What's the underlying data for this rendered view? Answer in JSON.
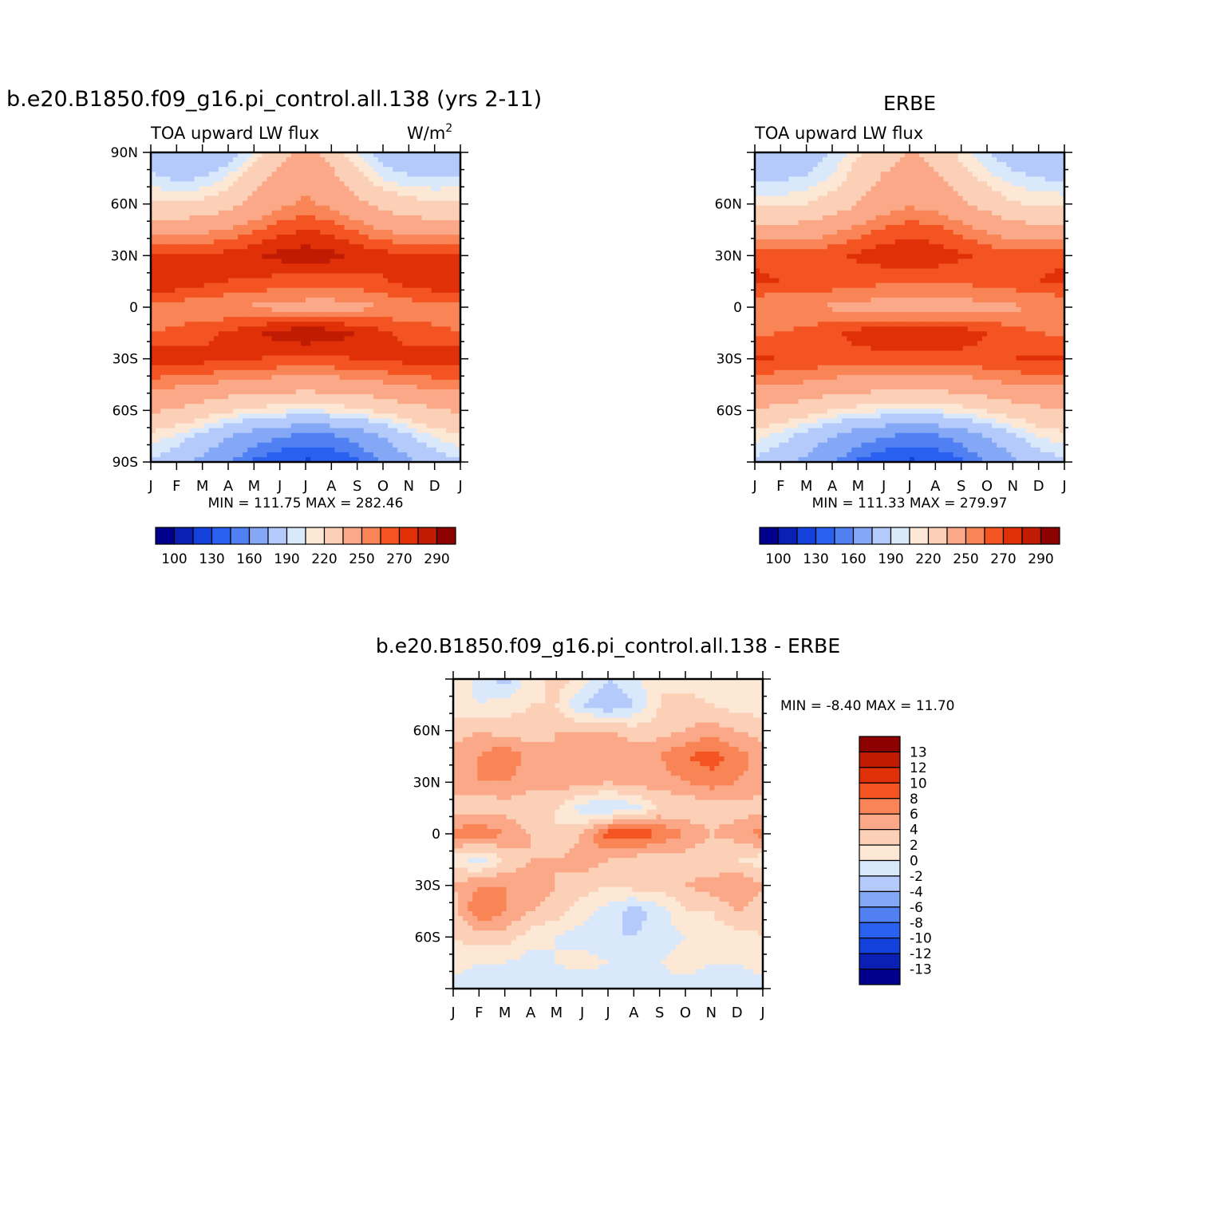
{
  "panels": [
    {
      "title": "b.e20.B1850.f09_g16.pi_control.all.138 (yrs 2-11)",
      "subtitle": "TOA upward LW flux",
      "units": "W/m",
      "units_sup": "2",
      "minmax": "MIN = 111.75 MAX = 282.46"
    },
    {
      "title": "ERBE",
      "subtitle": "TOA upward LW flux",
      "units": "",
      "units_sup": "",
      "minmax": "MIN = 111.33 MAX = 279.97"
    },
    {
      "title": "b.e20.B1850.f09_g16.pi_control.all.138 - ERBE",
      "subtitle": "",
      "units": "",
      "units_sup": "",
      "minmax": "MIN =   -8.40 MAX =   11.70"
    }
  ],
  "colors": {
    "abs": [
      "#00008c",
      "#0a1fb4",
      "#1440dc",
      "#2a60f0",
      "#5080f2",
      "#84a8f6",
      "#b4cafa",
      "#dae8fc",
      "#fde8d6",
      "#fcd0b6",
      "#fba888",
      "#f98556",
      "#f45422",
      "#e03008",
      "#c01c04",
      "#8c0000"
    ],
    "diff": [
      "#00008c",
      "#0a1fb4",
      "#1440dc",
      "#2a60f0",
      "#5080f2",
      "#84a8f6",
      "#b4cafa",
      "#dae8fc",
      "#fde8d6",
      "#fcd0b6",
      "#fba888",
      "#f98556",
      "#f45422",
      "#e03008",
      "#c01c04",
      "#8c0000"
    ]
  },
  "chart_data": [
    {
      "type": "heatmap",
      "title": "b.e20.B1850.f09_g16.pi_control.all.138 (yrs 2-11)",
      "subtitle": "TOA upward LW flux",
      "units": "W/m2",
      "x_labels": [
        "J",
        "F",
        "M",
        "A",
        "M",
        "J",
        "J",
        "A",
        "S",
        "O",
        "N",
        "D",
        "J"
      ],
      "y_labels": [
        "90N",
        "60N",
        "30N",
        "0",
        "30S",
        "60S",
        "90S"
      ],
      "ylim": [
        -90,
        90
      ],
      "levels": [
        100,
        110,
        120,
        130,
        140,
        160,
        180,
        190,
        200,
        220,
        240,
        250,
        260,
        270,
        280,
        290
      ],
      "level_tick_labels": [
        "100",
        "130",
        "160",
        "190",
        "220",
        "250",
        "270",
        "290"
      ],
      "lats": [
        90,
        75,
        60,
        45,
        30,
        15,
        0,
        -15,
        -30,
        -45,
        -60,
        -75,
        -90
      ],
      "values": [
        [
          170,
          162,
          158,
          168,
          190,
          212,
          226,
          212,
          188,
          172,
          162,
          162,
          168
        ],
        [
          183,
          178,
          180,
          192,
          212,
          228,
          236,
          226,
          208,
          190,
          182,
          180,
          182
        ],
        [
          205,
          202,
          205,
          213,
          225,
          236,
          242,
          236,
          226,
          213,
          206,
          204,
          205
        ],
        [
          232,
          232,
          236,
          241,
          248,
          256,
          260,
          257,
          248,
          240,
          234,
          232,
          232
        ],
        [
          262,
          262,
          262,
          264,
          268,
          274,
          276,
          274,
          268,
          264,
          262,
          262,
          262
        ],
        [
          270,
          268,
          264,
          260,
          258,
          256,
          255,
          255,
          256,
          259,
          264,
          268,
          270
        ],
        [
          245,
          244,
          242,
          240,
          238,
          236,
          234,
          234,
          236,
          240,
          244,
          246,
          245
        ],
        [
          250,
          252,
          256,
          262,
          268,
          275,
          278,
          276,
          270,
          262,
          256,
          252,
          250
        ],
        [
          268,
          266,
          264,
          262,
          260,
          259,
          259,
          259,
          260,
          262,
          264,
          266,
          268
        ],
        [
          244,
          242,
          240,
          236,
          234,
          232,
          231,
          232,
          234,
          238,
          242,
          244,
          244
        ],
        [
          222,
          218,
          210,
          202,
          196,
          192,
          190,
          192,
          196,
          204,
          212,
          218,
          222
        ],
        [
          196,
          188,
          176,
          160,
          148,
          140,
          136,
          138,
          146,
          160,
          178,
          192,
          198
        ],
        [
          178,
          168,
          154,
          140,
          128,
          122,
          118,
          120,
          128,
          140,
          156,
          170,
          178
        ]
      ]
    },
    {
      "type": "heatmap",
      "title": "ERBE",
      "subtitle": "TOA upward LW flux",
      "x_labels": [
        "J",
        "F",
        "M",
        "A",
        "M",
        "J",
        "J",
        "A",
        "S",
        "O",
        "N",
        "D",
        "J"
      ],
      "y_labels": [
        "60N",
        "30N",
        "0",
        "30S",
        "60S"
      ],
      "ylim": [
        -90,
        90
      ],
      "levels": [
        100,
        110,
        120,
        130,
        140,
        160,
        180,
        190,
        200,
        220,
        240,
        250,
        260,
        270,
        280,
        290
      ],
      "level_tick_labels": [
        "100",
        "130",
        "160",
        "190",
        "220",
        "250",
        "270",
        "290"
      ],
      "lats": [
        90,
        75,
        60,
        45,
        30,
        15,
        0,
        -15,
        -30,
        -45,
        -60,
        -75,
        -90
      ],
      "values": [
        [
          160,
          165,
          170,
          180,
          198,
          212,
          222,
          212,
          195,
          180,
          170,
          162,
          160
        ],
        [
          178,
          178,
          182,
          192,
          208,
          222,
          230,
          224,
          210,
          195,
          185,
          180,
          178
        ],
        [
          198,
          196,
          200,
          208,
          220,
          232,
          238,
          234,
          224,
          212,
          202,
          198,
          198
        ],
        [
          226,
          226,
          230,
          236,
          244,
          252,
          256,
          254,
          246,
          238,
          230,
          226,
          226
        ],
        [
          258,
          256,
          256,
          258,
          262,
          266,
          268,
          266,
          262,
          258,
          256,
          258,
          258
        ],
        [
          262,
          260,
          258,
          256,
          254,
          252,
          252,
          252,
          252,
          254,
          256,
          260,
          262
        ],
        [
          240,
          240,
          240,
          238,
          236,
          234,
          232,
          232,
          234,
          236,
          238,
          240,
          240
        ],
        [
          248,
          250,
          254,
          258,
          264,
          268,
          270,
          270,
          266,
          260,
          254,
          250,
          248
        ],
        [
          262,
          260,
          258,
          256,
          256,
          256,
          256,
          256,
          256,
          258,
          260,
          262,
          262
        ],
        [
          242,
          240,
          238,
          234,
          232,
          230,
          230,
          230,
          232,
          236,
          240,
          242,
          242
        ],
        [
          218,
          214,
          208,
          200,
          194,
          190,
          188,
          190,
          194,
          202,
          210,
          216,
          218
        ],
        [
          194,
          186,
          174,
          160,
          148,
          140,
          136,
          138,
          146,
          160,
          176,
          190,
          196
        ],
        [
          178,
          168,
          154,
          140,
          128,
          122,
          118,
          120,
          128,
          140,
          156,
          170,
          178
        ]
      ]
    },
    {
      "type": "heatmap",
      "title": "b.e20.B1850.f09_g16.pi_control.all.138 - ERBE",
      "x_labels": [
        "J",
        "F",
        "M",
        "A",
        "M",
        "J",
        "J",
        "A",
        "S",
        "O",
        "N",
        "D",
        "J"
      ],
      "y_labels": [
        "60N",
        "30N",
        "0",
        "30S",
        "60S"
      ],
      "ylim": [
        -90,
        90
      ],
      "levels": [
        -13,
        -12,
        -10,
        -8,
        -6,
        -4,
        -2,
        0,
        2,
        4,
        6,
        8,
        10,
        12,
        13
      ],
      "level_tick_labels": [
        "13",
        "12",
        "10",
        "8",
        "6",
        "4",
        "2",
        "0",
        "-2",
        "-4",
        "-6",
        "-8",
        "-10",
        "-12",
        "-13"
      ],
      "lats": [
        90,
        75,
        60,
        45,
        30,
        15,
        0,
        -15,
        -30,
        -45,
        -60,
        -75,
        -90
      ],
      "values": [
        [
          2,
          -1,
          -3,
          1,
          3,
          1,
          -2,
          -1,
          2,
          1,
          0,
          2,
          2
        ],
        [
          1,
          0,
          1,
          2,
          2,
          -2,
          -4,
          -2,
          2,
          3,
          2,
          1,
          1
        ],
        [
          3,
          4,
          3,
          3,
          4,
          4,
          4,
          3,
          3,
          4,
          5,
          4,
          3
        ],
        [
          5,
          6,
          8,
          5,
          4,
          5,
          6,
          5,
          6,
          8,
          9,
          7,
          5
        ],
        [
          5,
          6,
          6,
          5,
          5,
          5,
          4,
          5,
          5,
          6,
          7,
          6,
          5
        ],
        [
          3,
          2,
          3,
          2,
          2,
          -1,
          -2,
          -1,
          2,
          2,
          3,
          3,
          3
        ],
        [
          7,
          8,
          6,
          4,
          2,
          4,
          9,
          10,
          8,
          6,
          4,
          5,
          7
        ],
        [
          1,
          -1,
          2,
          4,
          4,
          5,
          4,
          3,
          2,
          3,
          2,
          2,
          1
        ],
        [
          4,
          6,
          6,
          5,
          4,
          3,
          2,
          3,
          3,
          4,
          5,
          6,
          4
        ],
        [
          3,
          8,
          6,
          4,
          3,
          1,
          -1,
          -3,
          -1,
          2,
          2,
          4,
          3
        ],
        [
          2,
          3,
          3,
          1,
          0,
          -1,
          -2,
          -2,
          -1,
          0,
          1,
          1,
          2
        ],
        [
          1,
          0,
          0,
          -1,
          0,
          1,
          0,
          -1,
          0,
          1,
          0,
          0,
          1
        ],
        [
          -1,
          -2,
          -2,
          -1,
          -1,
          -2,
          -2,
          -2,
          -1,
          -1,
          -2,
          -2,
          -1
        ]
      ]
    }
  ]
}
